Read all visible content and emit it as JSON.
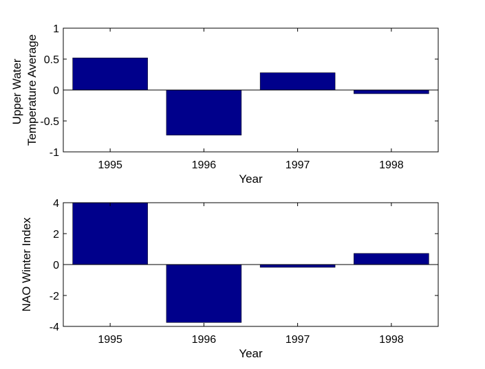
{
  "chart_data": [
    {
      "type": "bar",
      "categories": [
        "1995",
        "1996",
        "1997",
        "1998"
      ],
      "values": [
        0.52,
        -0.73,
        0.28,
        -0.06
      ],
      "title": "",
      "xlabel": "Year",
      "ylabel_lines": [
        "Upper Water",
        "Temperature Average"
      ],
      "ylim": [
        -1,
        1
      ],
      "yticks": [
        "1",
        "0.5",
        "0",
        "-0.5",
        "-1"
      ],
      "ytick_values": [
        1,
        0.5,
        0,
        -0.5,
        -1
      ],
      "bar_color": "#00008b",
      "grid": false
    },
    {
      "type": "bar",
      "categories": [
        "1995",
        "1996",
        "1997",
        "1998"
      ],
      "values": [
        4.0,
        -3.75,
        -0.18,
        0.72
      ],
      "title": "",
      "xlabel": "Year",
      "ylabel_lines": [
        "NAO Winter Index"
      ],
      "ylim": [
        -4,
        4
      ],
      "yticks": [
        "4",
        "2",
        "0",
        "-2",
        "-4"
      ],
      "ytick_values": [
        4,
        2,
        0,
        -2,
        -4
      ],
      "bar_color": "#00008b",
      "grid": false
    }
  ]
}
